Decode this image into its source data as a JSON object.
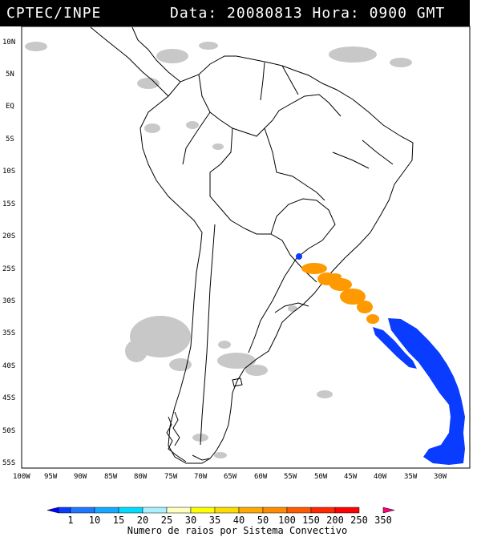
{
  "header": {
    "source": "CPTEC/INPE",
    "datetime": "Data: 20080813 Hora: 0900 GMT"
  },
  "lat_labels": [
    "10N",
    "5N",
    "EQ",
    "5S",
    "10S",
    "15S",
    "20S",
    "25S",
    "30S",
    "35S",
    "40S",
    "45S",
    "50S",
    "55S"
  ],
  "lon_labels": [
    "100W",
    "95W",
    "90W",
    "85W",
    "80W",
    "75W",
    "70W",
    "65W",
    "60W",
    "55W",
    "50W",
    "45W",
    "40W",
    "35W",
    "30W"
  ],
  "colorbar": {
    "values": [
      "1",
      "10",
      "15",
      "20",
      "25",
      "30",
      "35",
      "40",
      "50",
      "100",
      "150",
      "200",
      "250",
      "350"
    ],
    "colors": [
      "#0000ff",
      "#0a3cff",
      "#1e78ff",
      "#14aaff",
      "#00dcff",
      "#aaf0ff",
      "#ffffc0",
      "#ffff00",
      "#ffdc00",
      "#ffaa00",
      "#ff8c00",
      "#ff5a00",
      "#ff2800",
      "#ff0000",
      "#ff0078"
    ],
    "caption": "Numero de raios por Sistema Convectivo"
  },
  "legend_colors": {
    "cloud": "#c8c8c8",
    "lightning_low": "#0a3cff",
    "lightning_high": "#ff9900"
  }
}
